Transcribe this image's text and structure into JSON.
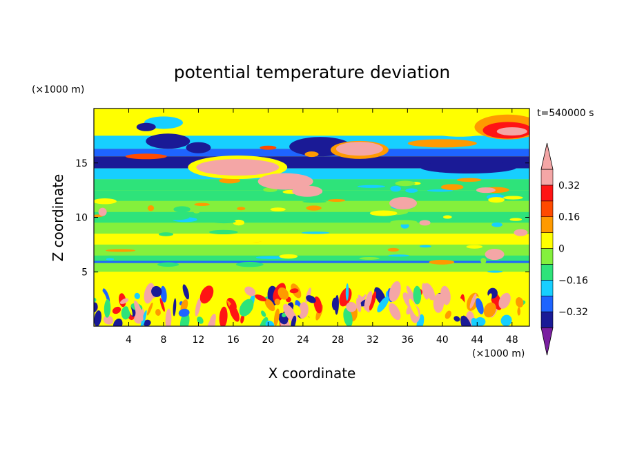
{
  "chart_data": {
    "type": "heatmap",
    "title": "potential temperature deviation",
    "xlabel": "X coordinate",
    "ylabel": "Z coordinate",
    "x_unit": "(×1000 m)",
    "y_unit": "(×1000 m)",
    "time_label": "t=540000 s",
    "xlim": [
      0,
      50
    ],
    "ylim": [
      0,
      20
    ],
    "x_ticks": [
      4,
      8,
      12,
      16,
      20,
      24,
      28,
      32,
      36,
      40,
      44,
      48
    ],
    "y_ticks": [
      5,
      10,
      15
    ],
    "colorbar": {
      "levels": [
        -0.4,
        -0.32,
        -0.24,
        -0.16,
        -0.08,
        0,
        0.08,
        0.16,
        0.24,
        0.32,
        0.4
      ],
      "labels": [
        {
          "value": 0.32,
          "text": "0.32"
        },
        {
          "value": 0.16,
          "text": "0.16"
        },
        {
          "value": 0,
          "text": "0"
        },
        {
          "value": -0.16,
          "text": "−0.16"
        },
        {
          "value": -0.32,
          "text": "−0.32"
        }
      ],
      "colors": [
        "#7a1fa0",
        "#1a1a96",
        "#1e64ff",
        "#17cfff",
        "#2ee37a",
        "#84f03c",
        "#ffff00",
        "#ff9a00",
        "#ff4a00",
        "#ff1414",
        "#f4a6a6"
      ]
    },
    "bands": [
      {
        "z": [
          19.0,
          20.0
        ],
        "value": 0.05
      },
      {
        "z": [
          17.5,
          19.0
        ],
        "value": 0.02
      },
      {
        "z": [
          16.3,
          17.5
        ],
        "value": -0.18
      },
      {
        "z": [
          15.6,
          16.3
        ],
        "value": -0.26
      },
      {
        "z": [
          14.5,
          15.6
        ],
        "value": -0.36
      },
      {
        "z": [
          13.5,
          14.5
        ],
        "value": -0.24
      },
      {
        "z": [
          12.5,
          13.5
        ],
        "value": -0.16
      },
      {
        "z": [
          11.5,
          12.5
        ],
        "value": -0.12
      },
      {
        "z": [
          10.5,
          11.5
        ],
        "value": -0.04
      },
      {
        "z": [
          9.5,
          10.5
        ],
        "value": -0.12
      },
      {
        "z": [
          8.5,
          9.5
        ],
        "value": -0.04
      },
      {
        "z": [
          7.5,
          8.5
        ],
        "value": 0.02
      },
      {
        "z": [
          6.5,
          7.5
        ],
        "value": -0.04
      },
      {
        "z": [
          6.0,
          6.5
        ],
        "value": -0.12
      },
      {
        "z": [
          5.8,
          6.0
        ],
        "value": -0.26
      },
      {
        "z": [
          5.0,
          5.8
        ],
        "value": -0.04
      },
      {
        "z": [
          3.3,
          5.0
        ],
        "value": 0.05
      }
    ],
    "features": [
      {
        "x": 21,
        "z": 14.8,
        "value": 0.45
      },
      {
        "x": 16,
        "z": 14.8,
        "value": 0.45
      },
      {
        "x": 24,
        "z": 13.2,
        "value": 0.45
      },
      {
        "x": 30,
        "z": 16.2,
        "value": 0.45
      },
      {
        "x": 48,
        "z": 17.8,
        "value": 0.45
      },
      {
        "x": 11,
        "z": 16.6,
        "value": -0.36
      },
      {
        "x": 25,
        "z": 16.3,
        "value": -0.36
      },
      {
        "x": 40,
        "z": 17.0,
        "value": 0.1
      },
      {
        "x": 8,
        "z": 18.5,
        "value": -0.12
      },
      {
        "x": 35,
        "z": 10.8,
        "value": 0.4
      },
      {
        "x": 46,
        "z": 7.2,
        "value": 0.4
      },
      {
        "x": 49,
        "z": 8.3,
        "value": 0.4
      }
    ],
    "boundary_layer": {
      "z": [
        0,
        3.3
      ],
      "note": "turbulent mixed values -0.40 to 0.45"
    },
    "grid": false
  }
}
